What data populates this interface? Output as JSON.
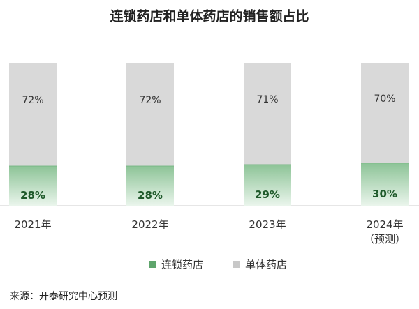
{
  "chart_data": {
    "type": "stacked_bar_100",
    "title": "连锁药店和单体药店的销售额占比",
    "categories": [
      "2021年",
      "2022年",
      "2023年",
      "2024年\n（预测）"
    ],
    "series": [
      {
        "name": "连锁药店",
        "color": "#8cc396",
        "values": [
          28,
          28,
          29,
          30
        ],
        "value_labels": [
          "28%",
          "28%",
          "29%",
          "30%"
        ]
      },
      {
        "name": "单体药店",
        "color": "#d9d9d9",
        "values": [
          72,
          72,
          71,
          70
        ],
        "value_labels": [
          "72%",
          "72%",
          "71%",
          "70%"
        ]
      }
    ],
    "ylim": [
      0,
      100
    ],
    "legend": "bottom",
    "source": "来源：开泰研究中心预测"
  }
}
